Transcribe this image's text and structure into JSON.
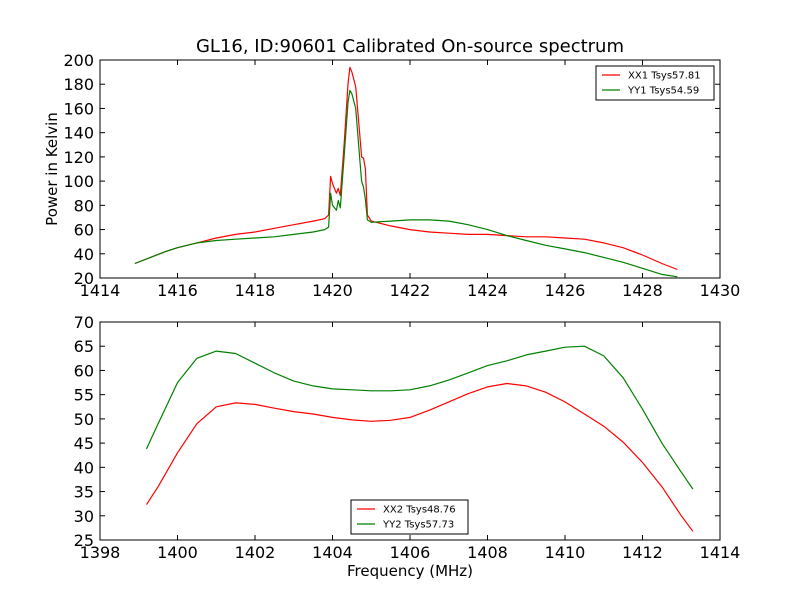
{
  "figure": {
    "title": "GL16, ID:90601 Calibrated On-source spectrum",
    "xlabel": "Frequency (MHz)"
  },
  "chart_data": [
    {
      "type": "line",
      "title": "GL16, ID:90601 Calibrated On-source spectrum",
      "xlabel": "",
      "ylabel": "Power in Kelvin",
      "xlim": [
        1414,
        1430
      ],
      "ylim": [
        20,
        200
      ],
      "xticks": [
        1414,
        1416,
        1418,
        1420,
        1422,
        1424,
        1426,
        1428,
        1430
      ],
      "yticks": [
        20,
        40,
        60,
        80,
        100,
        120,
        140,
        160,
        180,
        200
      ],
      "grid": false,
      "legend_position": "top-right",
      "series": [
        {
          "name": "XX1 Tsys57.81",
          "color": "#ff0000",
          "x": [
            1414.9,
            1415.3,
            1415.7,
            1416.0,
            1416.5,
            1417.0,
            1417.5,
            1418.0,
            1418.5,
            1419.0,
            1419.5,
            1419.8,
            1419.9,
            1419.95,
            1420.0,
            1420.1,
            1420.15,
            1420.2,
            1420.3,
            1420.4,
            1420.45,
            1420.5,
            1420.6,
            1420.7,
            1420.75,
            1420.8,
            1420.85,
            1420.9,
            1421.0,
            1421.5,
            1422.0,
            1422.5,
            1423.0,
            1423.5,
            1424.0,
            1424.5,
            1425.0,
            1425.5,
            1426.0,
            1426.5,
            1427.0,
            1427.5,
            1428.0,
            1428.5,
            1428.9
          ],
          "values": [
            32,
            37,
            42,
            45,
            49,
            53,
            56,
            58,
            61,
            64,
            67,
            69,
            72,
            104,
            98,
            90,
            94,
            88,
            130,
            180,
            194,
            190,
            178,
            140,
            120,
            119,
            110,
            72,
            67,
            63,
            60,
            58,
            57,
            56,
            56,
            55,
            54,
            54,
            53,
            52,
            49,
            45,
            39,
            32,
            27
          ]
        },
        {
          "name": "YY1 Tsys54.59",
          "color": "#008000",
          "x": [
            1414.9,
            1415.3,
            1415.7,
            1416.0,
            1416.5,
            1417.0,
            1417.5,
            1418.0,
            1418.5,
            1419.0,
            1419.5,
            1419.8,
            1419.9,
            1419.95,
            1420.0,
            1420.1,
            1420.15,
            1420.2,
            1420.3,
            1420.4,
            1420.45,
            1420.5,
            1420.6,
            1420.7,
            1420.75,
            1420.8,
            1420.85,
            1420.9,
            1421.0,
            1421.5,
            1422.0,
            1422.5,
            1423.0,
            1423.5,
            1424.0,
            1424.5,
            1425.0,
            1425.5,
            1426.0,
            1426.5,
            1427.0,
            1427.5,
            1428.0,
            1428.5,
            1428.9
          ],
          "values": [
            32,
            37,
            42,
            45,
            49,
            51,
            52,
            53,
            54,
            56,
            58,
            60,
            62,
            90,
            80,
            76,
            84,
            78,
            120,
            165,
            175,
            172,
            160,
            120,
            100,
            95,
            85,
            68,
            66,
            67,
            68,
            68,
            67,
            64,
            60,
            55,
            51,
            47,
            44,
            41,
            37,
            33,
            28,
            23,
            21
          ]
        }
      ]
    },
    {
      "type": "line",
      "title": "",
      "xlabel": "Frequency (MHz)",
      "ylabel": "",
      "xlim": [
        1398,
        1414
      ],
      "ylim": [
        25,
        70
      ],
      "xticks": [
        1398,
        1400,
        1402,
        1404,
        1406,
        1408,
        1410,
        1412,
        1414
      ],
      "yticks": [
        25,
        30,
        35,
        40,
        45,
        50,
        55,
        60,
        65,
        70
      ],
      "grid": false,
      "legend_position": "bottom-center",
      "series": [
        {
          "name": "XX2 Tsys48.76",
          "color": "#ff0000",
          "x": [
            1399.2,
            1399.5,
            1400.0,
            1400.5,
            1401.0,
            1401.5,
            1402.0,
            1402.5,
            1403.0,
            1403.5,
            1404.0,
            1404.5,
            1405.0,
            1405.5,
            1406.0,
            1406.5,
            1407.0,
            1407.5,
            1408.0,
            1408.5,
            1409.0,
            1409.5,
            1410.0,
            1410.5,
            1411.0,
            1411.5,
            1412.0,
            1412.5,
            1413.0,
            1413.3
          ],
          "values": [
            32.3,
            36,
            43,
            49,
            52.5,
            53.3,
            53,
            52.2,
            51.5,
            51,
            50.3,
            49.8,
            49.5,
            49.7,
            50.3,
            51.8,
            53.5,
            55.2,
            56.6,
            57.3,
            56.8,
            55.5,
            53.5,
            51,
            48.5,
            45.2,
            41,
            36,
            30,
            26.8
          ]
        },
        {
          "name": "YY2 Tsys57.73",
          "color": "#008000",
          "x": [
            1399.2,
            1399.5,
            1400.0,
            1400.5,
            1401.0,
            1401.5,
            1402.0,
            1402.5,
            1403.0,
            1403.5,
            1404.0,
            1404.5,
            1405.0,
            1405.5,
            1406.0,
            1406.5,
            1407.0,
            1407.5,
            1408.0,
            1408.5,
            1409.0,
            1409.5,
            1410.0,
            1410.5,
            1411.0,
            1411.5,
            1412.0,
            1412.5,
            1413.0,
            1413.3
          ],
          "values": [
            43.8,
            49,
            57.5,
            62.5,
            64,
            63.5,
            61.5,
            59.5,
            57.8,
            56.8,
            56.2,
            56,
            55.8,
            55.8,
            56,
            56.8,
            58,
            59.5,
            61,
            62,
            63.2,
            64,
            64.8,
            65,
            63,
            58.5,
            52,
            45,
            39,
            35.5
          ]
        }
      ]
    }
  ]
}
